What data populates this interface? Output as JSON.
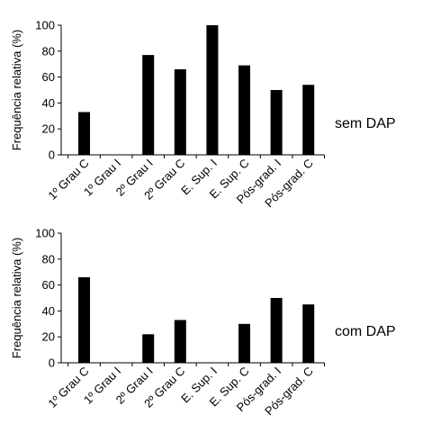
{
  "chart_data": [
    {
      "type": "bar",
      "panel_label": "sem DAP",
      "ylabel": "Frequência relativa (%)",
      "xlabel": "",
      "ylim": [
        0,
        100
      ],
      "yticks": [
        0,
        20,
        40,
        60,
        80,
        100
      ],
      "grid": false,
      "categories": [
        "1º Grau C",
        "1º Grau I",
        "2º Grau I",
        "2º Grau C",
        "E. Sup. I",
        "E. Sup. C",
        "Pós-grad. I",
        "Pós-grad. C"
      ],
      "values": [
        33,
        0,
        77,
        66,
        100,
        69,
        50,
        54
      ],
      "bar_color": "#000000"
    },
    {
      "type": "bar",
      "panel_label": "com DAP",
      "ylabel": "Frequência relativa (%)",
      "xlabel": "",
      "ylim": [
        0,
        100
      ],
      "yticks": [
        0,
        20,
        40,
        60,
        80,
        100
      ],
      "grid": false,
      "categories": [
        "1º Grau C",
        "1º Grau I",
        "2º Grau I",
        "2º Grau C",
        "E. Sup. I",
        "E. Sup. C",
        "Pós-grad. I",
        "Pós-grad. C"
      ],
      "values": [
        66,
        0,
        22,
        33,
        0,
        30,
        50,
        45
      ],
      "bar_color": "#000000"
    }
  ]
}
